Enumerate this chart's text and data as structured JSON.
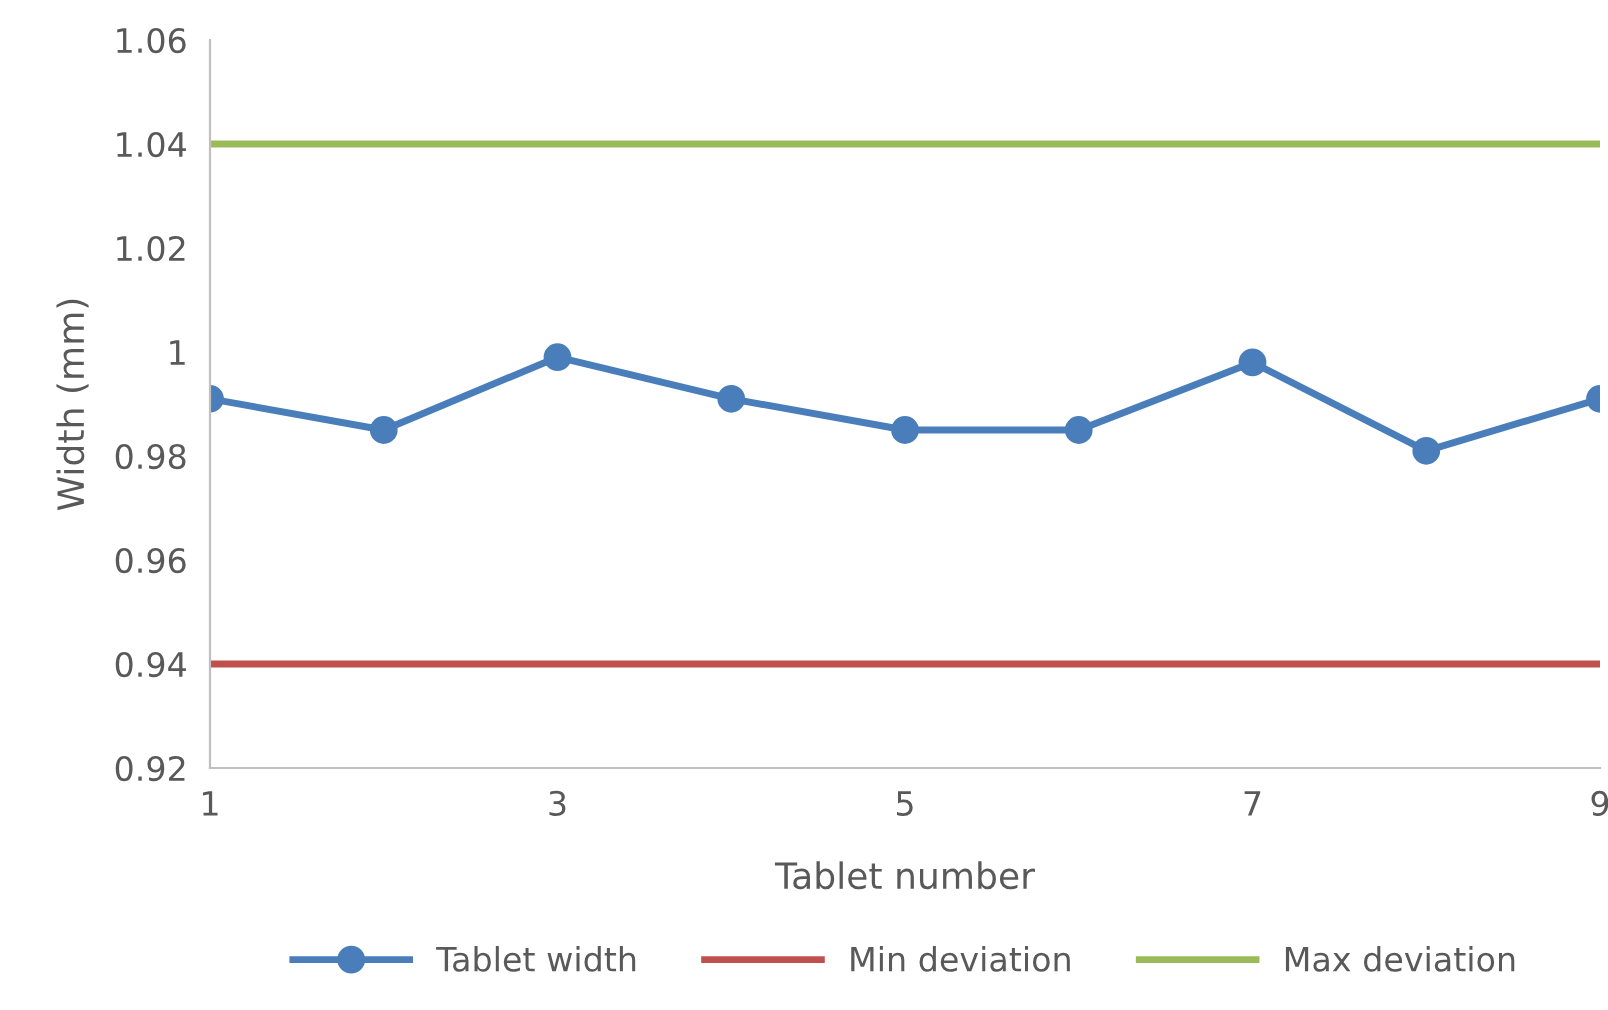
{
  "chart_data": {
    "type": "line",
    "xlabel": "Tablet number",
    "ylabel": "Width (mm)",
    "x": [
      1,
      2,
      3,
      4,
      5,
      6,
      7,
      8,
      9
    ],
    "series": [
      {
        "name": "Tablet width",
        "color": "#4a7ebb",
        "values": [
          0.991,
          0.985,
          0.999,
          0.991,
          0.985,
          0.985,
          0.998,
          0.981,
          0.991
        ],
        "marker": "circle"
      },
      {
        "name": "Min deviation",
        "color": "#c0504d",
        "values": [
          0.94,
          0.94,
          0.94,
          0.94,
          0.94,
          0.94,
          0.94,
          0.94,
          0.94
        ],
        "marker": "none"
      },
      {
        "name": "Max deviation",
        "color": "#9bbb59",
        "values": [
          1.04,
          1.04,
          1.04,
          1.04,
          1.04,
          1.04,
          1.04,
          1.04,
          1.04
        ],
        "marker": "none"
      }
    ],
    "xlim": [
      1,
      9
    ],
    "xticks": [
      1,
      3,
      5,
      7,
      9
    ],
    "ylim": [
      0.92,
      1.06
    ],
    "yticks": [
      0.92,
      0.94,
      0.96,
      0.98,
      1,
      1.02,
      1.04,
      1.06
    ],
    "grid": false,
    "legend": "bottom",
    "line_style": "solid"
  }
}
